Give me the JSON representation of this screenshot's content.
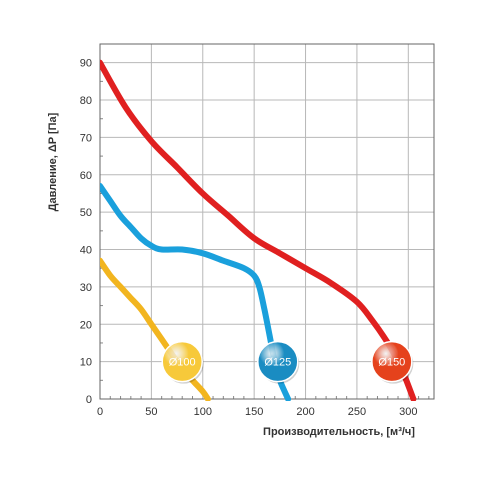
{
  "chart_data": {
    "type": "line",
    "xlabel": "Производительность, [м³/ч]",
    "ylabel": "Давление, ΔP [Па]",
    "xlim": [
      0,
      325
    ],
    "ylim": [
      0,
      95
    ],
    "x_ticks": [
      0,
      50,
      100,
      150,
      200,
      250,
      300
    ],
    "y_ticks": [
      0,
      10,
      20,
      30,
      40,
      50,
      60,
      70,
      80,
      90
    ],
    "grid": true,
    "series": [
      {
        "name": "Ø100",
        "color": "#f2b51f",
        "badge_color": "#f7c93a",
        "badge_at": [
          80,
          10
        ],
        "points": [
          [
            0,
            37
          ],
          [
            10,
            33
          ],
          [
            20,
            30
          ],
          [
            30,
            27
          ],
          [
            40,
            24
          ],
          [
            50,
            20
          ],
          [
            60,
            16
          ],
          [
            70,
            12
          ],
          [
            80,
            8
          ],
          [
            90,
            5
          ],
          [
            100,
            2
          ],
          [
            105,
            0
          ]
        ]
      },
      {
        "name": "Ø125",
        "color": "#1aa0dc",
        "badge_color": "#1a8cc2",
        "badge_at": [
          173,
          10
        ],
        "points": [
          [
            0,
            57
          ],
          [
            10,
            53
          ],
          [
            20,
            49
          ],
          [
            30,
            46
          ],
          [
            40,
            43
          ],
          [
            50,
            41
          ],
          [
            60,
            40
          ],
          [
            80,
            40
          ],
          [
            100,
            39
          ],
          [
            120,
            37
          ],
          [
            140,
            35
          ],
          [
            150,
            33
          ],
          [
            155,
            30
          ],
          [
            160,
            24
          ],
          [
            165,
            17
          ],
          [
            170,
            10
          ],
          [
            175,
            5
          ],
          [
            183,
            0
          ]
        ]
      },
      {
        "name": "Ø150",
        "color": "#e02020",
        "badge_color": "#e5421c",
        "badge_at": [
          284,
          10
        ],
        "points": [
          [
            0,
            90
          ],
          [
            25,
            78
          ],
          [
            50,
            69
          ],
          [
            75,
            62
          ],
          [
            100,
            55
          ],
          [
            125,
            49
          ],
          [
            150,
            43
          ],
          [
            175,
            39
          ],
          [
            200,
            35
          ],
          [
            225,
            31
          ],
          [
            250,
            26
          ],
          [
            265,
            21
          ],
          [
            280,
            15
          ],
          [
            290,
            10
          ],
          [
            298,
            5
          ],
          [
            305,
            0
          ]
        ]
      }
    ]
  }
}
